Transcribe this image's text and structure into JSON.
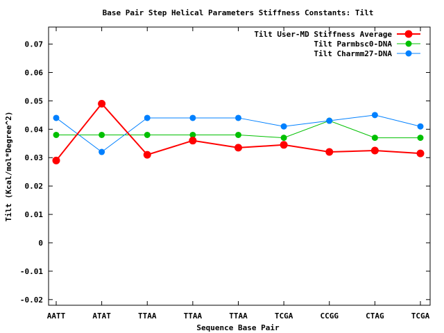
{
  "chart_data": {
    "type": "line",
    "title": "Base Pair Step Helical Parameters Stiffness Constants: Tilt",
    "xlabel": "Sequence Base Pair",
    "ylabel": "Tilt (Kcal/mol*Degree^2)",
    "categories": [
      "AATT",
      "ATAT",
      "TTAA",
      "TTAA",
      "TTAA",
      "TCGA",
      "CCGG",
      "CTAG",
      "TCGA"
    ],
    "ylim": [
      -0.022,
      0.076
    ],
    "yticks": [
      -0.02,
      -0.01,
      0,
      0.01,
      0.02,
      0.03,
      0.04,
      0.05,
      0.06,
      0.07
    ],
    "ytick_labels": [
      "-0.02",
      "-0.01",
      "0",
      "0.01",
      "0.02",
      "0.03",
      "0.04",
      "0.05",
      "0.06",
      "0.07"
    ],
    "grid": false,
    "legend_position": "top-right",
    "series": [
      {
        "name": "Tilt User-MD Stiffness Average",
        "color": "#ff0000",
        "values": [
          0.029,
          0.049,
          0.031,
          0.036,
          0.0335,
          0.0345,
          0.032,
          0.0325,
          0.0315
        ]
      },
      {
        "name": "Tilt Parmbsc0-DNA",
        "color": "#00c000",
        "values": [
          0.038,
          0.038,
          0.038,
          0.038,
          0.038,
          0.037,
          0.043,
          0.037,
          0.037
        ]
      },
      {
        "name": "Tilt Charmm27-DNA",
        "color": "#0080ff",
        "values": [
          0.044,
          0.032,
          0.044,
          0.044,
          0.044,
          0.041,
          0.043,
          0.045,
          0.041
        ]
      }
    ]
  }
}
